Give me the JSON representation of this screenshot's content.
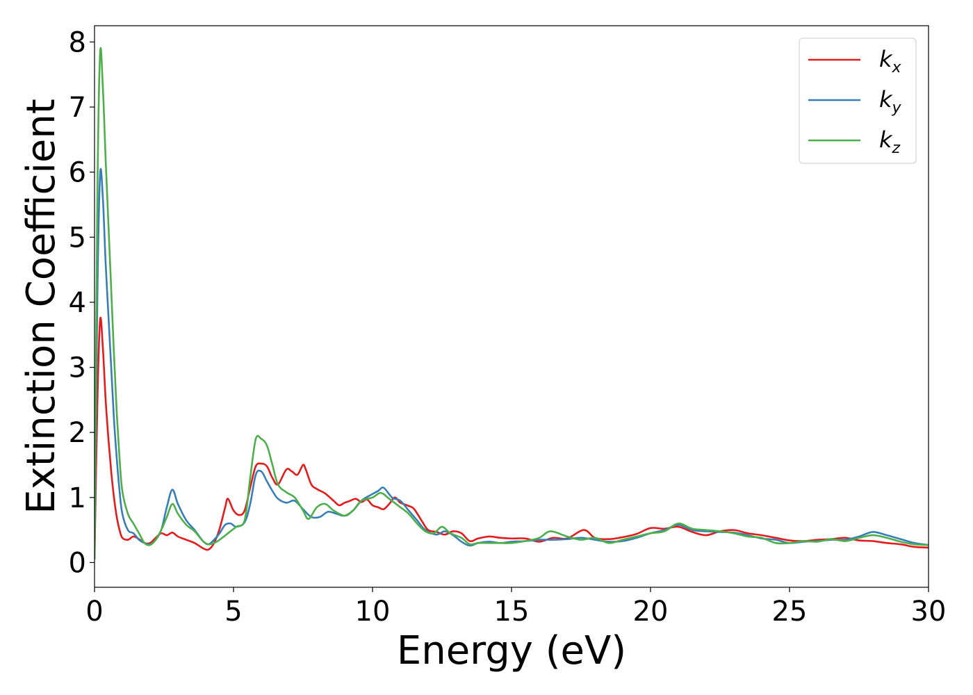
{
  "chart_data": {
    "type": "line",
    "xlabel": "Energy (eV)",
    "ylabel": "Extinction Coefficient",
    "xlim": [
      0,
      30
    ],
    "ylim": [
      -0.38,
      8.25
    ],
    "xticks": [
      0,
      5,
      10,
      15,
      20,
      25,
      30
    ],
    "yticks": [
      0,
      1,
      2,
      3,
      4,
      5,
      6,
      7,
      8
    ],
    "grid": false,
    "legend_position": "top-right",
    "series": [
      {
        "name": "k_x",
        "name_main": "k",
        "name_sub": "x",
        "color": "#e41a1c",
        "points": [
          [
            0,
            0.05
          ],
          [
            0.1,
            2.4
          ],
          [
            0.2,
            3.73
          ],
          [
            0.3,
            3.3
          ],
          [
            0.4,
            2.5
          ],
          [
            0.5,
            1.9
          ],
          [
            0.6,
            1.4
          ],
          [
            0.7,
            1.0
          ],
          [
            0.8,
            0.7
          ],
          [
            0.9,
            0.5
          ],
          [
            1.0,
            0.38
          ],
          [
            1.2,
            0.35
          ],
          [
            1.4,
            0.4
          ],
          [
            1.6,
            0.36
          ],
          [
            1.8,
            0.3
          ],
          [
            2.0,
            0.3
          ],
          [
            2.2,
            0.38
          ],
          [
            2.4,
            0.45
          ],
          [
            2.6,
            0.42
          ],
          [
            2.8,
            0.46
          ],
          [
            3.0,
            0.4
          ],
          [
            3.3,
            0.35
          ],
          [
            3.6,
            0.3
          ],
          [
            3.9,
            0.22
          ],
          [
            4.1,
            0.2
          ],
          [
            4.3,
            0.3
          ],
          [
            4.5,
            0.52
          ],
          [
            4.7,
            0.85
          ],
          [
            4.8,
            0.98
          ],
          [
            5.0,
            0.8
          ],
          [
            5.2,
            0.73
          ],
          [
            5.4,
            0.8
          ],
          [
            5.6,
            1.15
          ],
          [
            5.8,
            1.48
          ],
          [
            6.0,
            1.52
          ],
          [
            6.2,
            1.48
          ],
          [
            6.4,
            1.3
          ],
          [
            6.6,
            1.2
          ],
          [
            6.9,
            1.43
          ],
          [
            7.1,
            1.4
          ],
          [
            7.3,
            1.35
          ],
          [
            7.5,
            1.5
          ],
          [
            7.6,
            1.43
          ],
          [
            7.8,
            1.2
          ],
          [
            8.0,
            1.13
          ],
          [
            8.3,
            1.06
          ],
          [
            8.6,
            0.95
          ],
          [
            8.8,
            0.88
          ],
          [
            9.0,
            0.92
          ],
          [
            9.2,
            0.95
          ],
          [
            9.4,
            0.98
          ],
          [
            9.6,
            0.93
          ],
          [
            9.8,
            0.97
          ],
          [
            10.0,
            0.88
          ],
          [
            10.2,
            0.85
          ],
          [
            10.4,
            0.82
          ],
          [
            10.6,
            0.9
          ],
          [
            10.8,
            1.0
          ],
          [
            11.0,
            0.92
          ],
          [
            11.3,
            0.87
          ],
          [
            11.5,
            0.82
          ],
          [
            11.8,
            0.62
          ],
          [
            12.0,
            0.5
          ],
          [
            12.3,
            0.47
          ],
          [
            12.6,
            0.43
          ],
          [
            12.9,
            0.48
          ],
          [
            13.2,
            0.45
          ],
          [
            13.5,
            0.33
          ],
          [
            13.8,
            0.37
          ],
          [
            14.2,
            0.4
          ],
          [
            14.6,
            0.38
          ],
          [
            15.0,
            0.37
          ],
          [
            15.5,
            0.37
          ],
          [
            16.0,
            0.32
          ],
          [
            16.5,
            0.38
          ],
          [
            17.0,
            0.37
          ],
          [
            17.6,
            0.5
          ],
          [
            18.0,
            0.38
          ],
          [
            18.5,
            0.36
          ],
          [
            19.0,
            0.39
          ],
          [
            19.5,
            0.44
          ],
          [
            20.0,
            0.53
          ],
          [
            20.5,
            0.52
          ],
          [
            21.0,
            0.55
          ],
          [
            21.5,
            0.47
          ],
          [
            22.0,
            0.42
          ],
          [
            22.5,
            0.48
          ],
          [
            23.0,
            0.5
          ],
          [
            23.5,
            0.45
          ],
          [
            24.0,
            0.42
          ],
          [
            24.5,
            0.38
          ],
          [
            25.0,
            0.34
          ],
          [
            25.5,
            0.33
          ],
          [
            26.0,
            0.35
          ],
          [
            26.5,
            0.36
          ],
          [
            27.0,
            0.38
          ],
          [
            27.5,
            0.34
          ],
          [
            28.0,
            0.33
          ],
          [
            28.5,
            0.3
          ],
          [
            29.0,
            0.28
          ],
          [
            29.5,
            0.24
          ],
          [
            30.0,
            0.23
          ]
        ]
      },
      {
        "name": "k_y",
        "name_main": "k",
        "name_sub": "y",
        "color": "#377eb8",
        "points": [
          [
            0,
            0.05
          ],
          [
            0.1,
            4.0
          ],
          [
            0.2,
            5.96
          ],
          [
            0.3,
            5.6
          ],
          [
            0.4,
            4.6
          ],
          [
            0.5,
            3.8
          ],
          [
            0.6,
            3.0
          ],
          [
            0.7,
            2.2
          ],
          [
            0.8,
            1.6
          ],
          [
            0.9,
            1.1
          ],
          [
            1.0,
            0.75
          ],
          [
            1.2,
            0.5
          ],
          [
            1.4,
            0.45
          ],
          [
            1.6,
            0.35
          ],
          [
            1.8,
            0.3
          ],
          [
            2.0,
            0.28
          ],
          [
            2.2,
            0.35
          ],
          [
            2.4,
            0.5
          ],
          [
            2.6,
            0.85
          ],
          [
            2.8,
            1.12
          ],
          [
            3.0,
            0.9
          ],
          [
            3.3,
            0.65
          ],
          [
            3.6,
            0.5
          ],
          [
            3.9,
            0.33
          ],
          [
            4.1,
            0.28
          ],
          [
            4.3,
            0.35
          ],
          [
            4.5,
            0.45
          ],
          [
            4.7,
            0.58
          ],
          [
            4.9,
            0.6
          ],
          [
            5.1,
            0.55
          ],
          [
            5.4,
            0.62
          ],
          [
            5.6,
            0.9
          ],
          [
            5.8,
            1.35
          ],
          [
            6.0,
            1.4
          ],
          [
            6.2,
            1.25
          ],
          [
            6.4,
            1.1
          ],
          [
            6.6,
            0.98
          ],
          [
            6.9,
            0.92
          ],
          [
            7.2,
            0.95
          ],
          [
            7.5,
            0.82
          ],
          [
            7.8,
            0.7
          ],
          [
            8.1,
            0.7
          ],
          [
            8.4,
            0.78
          ],
          [
            8.7,
            0.75
          ],
          [
            9.0,
            0.72
          ],
          [
            9.3,
            0.8
          ],
          [
            9.6,
            0.95
          ],
          [
            9.9,
            1.03
          ],
          [
            10.2,
            1.1
          ],
          [
            10.4,
            1.15
          ],
          [
            10.7,
            1.0
          ],
          [
            11.0,
            0.95
          ],
          [
            11.3,
            0.8
          ],
          [
            11.6,
            0.65
          ],
          [
            11.9,
            0.5
          ],
          [
            12.3,
            0.43
          ],
          [
            12.6,
            0.48
          ],
          [
            12.9,
            0.42
          ],
          [
            13.2,
            0.32
          ],
          [
            13.5,
            0.26
          ],
          [
            13.8,
            0.3
          ],
          [
            14.2,
            0.32
          ],
          [
            14.6,
            0.3
          ],
          [
            15.0,
            0.32
          ],
          [
            15.5,
            0.33
          ],
          [
            16.0,
            0.35
          ],
          [
            16.5,
            0.35
          ],
          [
            17.0,
            0.36
          ],
          [
            17.5,
            0.38
          ],
          [
            18.0,
            0.35
          ],
          [
            18.5,
            0.32
          ],
          [
            19.0,
            0.33
          ],
          [
            19.5,
            0.38
          ],
          [
            20.0,
            0.45
          ],
          [
            20.5,
            0.5
          ],
          [
            21.0,
            0.58
          ],
          [
            21.5,
            0.5
          ],
          [
            22.0,
            0.48
          ],
          [
            22.5,
            0.47
          ],
          [
            23.0,
            0.46
          ],
          [
            23.5,
            0.42
          ],
          [
            24.0,
            0.37
          ],
          [
            24.5,
            0.35
          ],
          [
            25.0,
            0.3
          ],
          [
            25.5,
            0.32
          ],
          [
            26.0,
            0.33
          ],
          [
            26.5,
            0.35
          ],
          [
            27.0,
            0.35
          ],
          [
            27.5,
            0.4
          ],
          [
            28.0,
            0.47
          ],
          [
            28.5,
            0.42
          ],
          [
            29.0,
            0.36
          ],
          [
            29.5,
            0.3
          ],
          [
            30.0,
            0.27
          ]
        ]
      },
      {
        "name": "k_z",
        "name_main": "k",
        "name_sub": "z",
        "color": "#4daf4a",
        "points": [
          [
            0,
            0.05
          ],
          [
            0.1,
            5.5
          ],
          [
            0.2,
            7.82
          ],
          [
            0.3,
            7.3
          ],
          [
            0.4,
            6.2
          ],
          [
            0.5,
            5.2
          ],
          [
            0.6,
            4.2
          ],
          [
            0.7,
            3.2
          ],
          [
            0.8,
            2.3
          ],
          [
            0.9,
            1.6
          ],
          [
            1.0,
            1.1
          ],
          [
            1.2,
            0.75
          ],
          [
            1.4,
            0.6
          ],
          [
            1.6,
            0.45
          ],
          [
            1.8,
            0.3
          ],
          [
            2.0,
            0.27
          ],
          [
            2.2,
            0.35
          ],
          [
            2.4,
            0.5
          ],
          [
            2.6,
            0.7
          ],
          [
            2.8,
            0.9
          ],
          [
            3.0,
            0.75
          ],
          [
            3.3,
            0.58
          ],
          [
            3.6,
            0.48
          ],
          [
            3.9,
            0.33
          ],
          [
            4.1,
            0.28
          ],
          [
            4.3,
            0.3
          ],
          [
            4.5,
            0.35
          ],
          [
            4.8,
            0.45
          ],
          [
            5.1,
            0.55
          ],
          [
            5.4,
            0.65
          ],
          [
            5.6,
            1.3
          ],
          [
            5.8,
            1.9
          ],
          [
            6.0,
            1.9
          ],
          [
            6.2,
            1.8
          ],
          [
            6.4,
            1.5
          ],
          [
            6.6,
            1.2
          ],
          [
            6.9,
            1.08
          ],
          [
            7.2,
            1.0
          ],
          [
            7.5,
            0.8
          ],
          [
            7.7,
            0.67
          ],
          [
            8.0,
            0.85
          ],
          [
            8.3,
            0.9
          ],
          [
            8.6,
            0.8
          ],
          [
            9.0,
            0.72
          ],
          [
            9.3,
            0.8
          ],
          [
            9.6,
            0.95
          ],
          [
            10.0,
            1.0
          ],
          [
            10.3,
            1.07
          ],
          [
            10.6,
            0.98
          ],
          [
            11.0,
            0.85
          ],
          [
            11.3,
            0.75
          ],
          [
            11.6,
            0.6
          ],
          [
            11.9,
            0.48
          ],
          [
            12.2,
            0.45
          ],
          [
            12.5,
            0.55
          ],
          [
            12.8,
            0.45
          ],
          [
            13.2,
            0.38
          ],
          [
            13.5,
            0.28
          ],
          [
            13.8,
            0.3
          ],
          [
            14.2,
            0.3
          ],
          [
            14.6,
            0.3
          ],
          [
            15.0,
            0.3
          ],
          [
            15.5,
            0.33
          ],
          [
            16.0,
            0.38
          ],
          [
            16.4,
            0.48
          ],
          [
            17.0,
            0.4
          ],
          [
            17.5,
            0.35
          ],
          [
            18.0,
            0.38
          ],
          [
            18.5,
            0.3
          ],
          [
            19.0,
            0.35
          ],
          [
            19.5,
            0.4
          ],
          [
            20.0,
            0.45
          ],
          [
            20.5,
            0.48
          ],
          [
            21.0,
            0.6
          ],
          [
            21.5,
            0.52
          ],
          [
            22.0,
            0.5
          ],
          [
            22.5,
            0.48
          ],
          [
            23.0,
            0.45
          ],
          [
            23.5,
            0.4
          ],
          [
            24.0,
            0.38
          ],
          [
            24.5,
            0.3
          ],
          [
            25.0,
            0.3
          ],
          [
            25.5,
            0.33
          ],
          [
            26.0,
            0.32
          ],
          [
            26.5,
            0.36
          ],
          [
            27.0,
            0.33
          ],
          [
            27.5,
            0.38
          ],
          [
            28.0,
            0.42
          ],
          [
            28.5,
            0.38
          ],
          [
            29.0,
            0.32
          ],
          [
            29.5,
            0.28
          ],
          [
            30.0,
            0.27
          ]
        ]
      }
    ]
  }
}
